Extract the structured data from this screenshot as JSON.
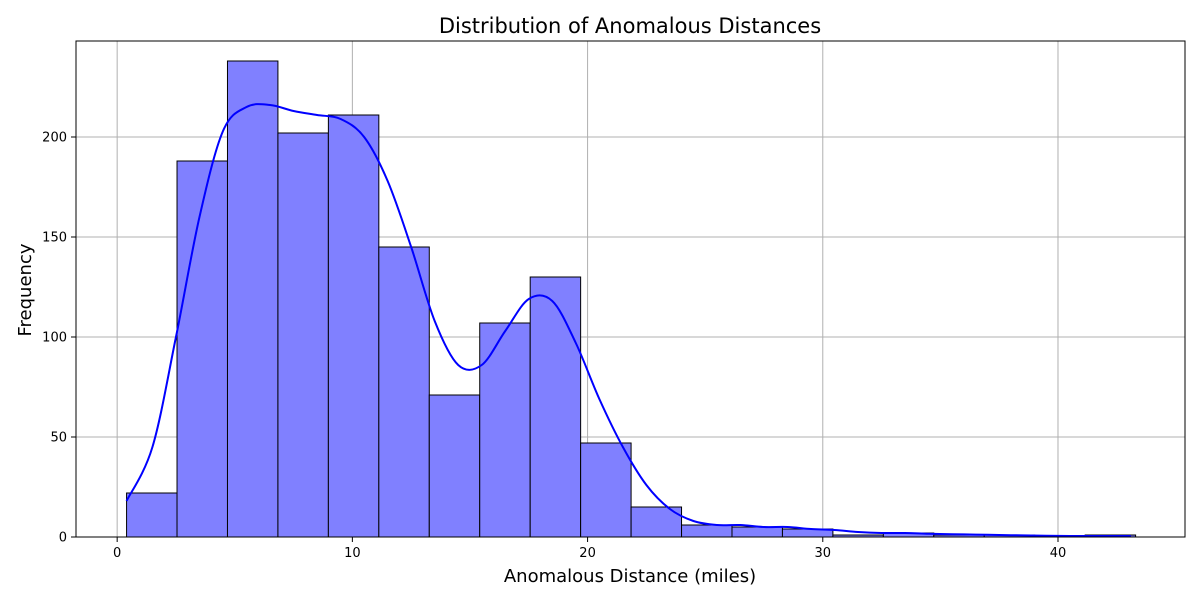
{
  "chart_data": {
    "type": "bar",
    "title": "Distribution of Anomalous Distances",
    "xlabel": "Anomalous Distance (miles)",
    "ylabel": "Frequency",
    "xlim": [
      -1.75,
      45.4
    ],
    "ylim": [
      0,
      248
    ],
    "xticks": [
      0,
      10,
      20,
      30,
      40
    ],
    "yticks": [
      0,
      50,
      100,
      150,
      200
    ],
    "grid": true,
    "bin_start": 0.4,
    "bin_width": 2.145,
    "values": [
      22,
      188,
      238,
      202,
      211,
      145,
      71,
      107,
      130,
      47,
      15,
      6,
      5,
      4,
      1,
      2,
      1,
      1,
      0,
      1
    ],
    "colors": {
      "bar_fill": "#8080ff",
      "bar_edge": "#000000",
      "kde_line": "#0000ff",
      "grid": "#b0b0b0"
    },
    "kde": {
      "x": [
        0.4,
        1.5,
        2.5,
        3.5,
        4.5,
        5.5,
        6.5,
        7.5,
        8.5,
        9.5,
        10.5,
        11.5,
        12.5,
        13.5,
        14.5,
        15.5,
        16.5,
        17.5,
        18.5,
        19.5,
        20.5,
        21.5,
        22.5,
        23.5,
        24.5,
        25.5,
        26.5,
        27.5,
        28.5,
        29.5,
        30.5,
        31.5,
        32.5,
        33.5,
        34.5,
        35.5,
        36.5,
        37.5,
        38.5,
        39.5,
        40.5,
        41.5,
        42.5,
        43.1
      ],
      "y": [
        18,
        45,
        100,
        160,
        203,
        215,
        216,
        213,
        211,
        209,
        200,
        178,
        145,
        108,
        86,
        86,
        103,
        119,
        118,
        97,
        69,
        45,
        26,
        14,
        8,
        6,
        6,
        5,
        5,
        4,
        3.5,
        2.5,
        2,
        2,
        1.6,
        1.4,
        1.2,
        1,
        0.8,
        0.6,
        0.5,
        0.5,
        0.5,
        0.5
      ]
    }
  }
}
